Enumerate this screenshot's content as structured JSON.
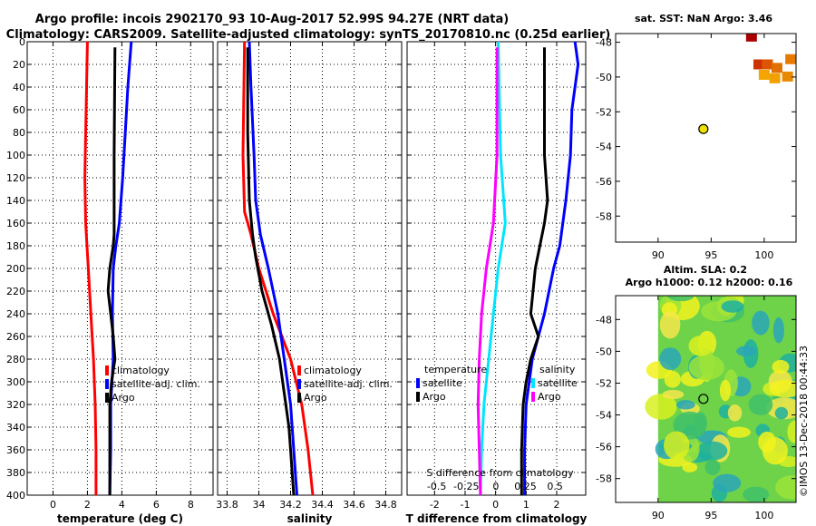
{
  "figure": {
    "title_line1": "Argo profile: incois 2902170_93 10-Aug-2017 52.99S 94.27E (NRT data)",
    "title_line2": "Climatology: CARS2009. Satellite-adjusted climatology: synTS_20170810.nc (0.25d earlier)",
    "timestamp": "©IMOS 13-Dec-2018 00:44:33"
  },
  "colors": {
    "climatology": "#ff0000",
    "satellite": "#0000ff",
    "argo": "#000000",
    "sal_satellite": "#00e5ff",
    "sal_argo": "#ff00ff"
  },
  "chart_data": [
    {
      "id": "temperature",
      "type": "line",
      "xlabel": "temperature (deg C)",
      "ylabel": "",
      "xlim": [
        -1.5,
        9.3
      ],
      "ylim": [
        400,
        0
      ],
      "xticks": [
        0,
        2,
        4,
        6,
        8
      ],
      "xtick_labels": [
        "0",
        "2",
        "4",
        "6",
        "8"
      ],
      "yticks": [
        0,
        20,
        40,
        60,
        80,
        100,
        120,
        140,
        160,
        180,
        200,
        220,
        240,
        260,
        280,
        300,
        320,
        340,
        360,
        380,
        400
      ],
      "grid": true,
      "legend": [
        "climatology",
        "satellite-adj. clim.",
        "Argo"
      ],
      "series": [
        {
          "name": "climatology",
          "color": "#ff0000",
          "depth": [
            0,
            40,
            80,
            120,
            160,
            200,
            240,
            280,
            320,
            360,
            400
          ],
          "values": [
            2.0,
            1.95,
            1.9,
            1.85,
            1.9,
            2.05,
            2.2,
            2.35,
            2.45,
            2.5,
            2.5
          ]
        },
        {
          "name": "satellite-adj. clim.",
          "color": "#0000ff",
          "depth": [
            0,
            20,
            40,
            80,
            120,
            160,
            180,
            200,
            240,
            280,
            320,
            360,
            400
          ],
          "values": [
            4.55,
            4.45,
            4.35,
            4.2,
            4.05,
            3.85,
            3.65,
            3.5,
            3.45,
            3.5,
            3.35,
            3.35,
            3.3
          ],
          "_x": 0
        },
        {
          "name": "Argo",
          "color": "#000000",
          "depth": [
            5,
            100,
            170,
            180,
            200,
            220,
            240,
            260,
            280,
            300,
            320,
            360,
            400
          ],
          "values": [
            3.6,
            3.55,
            3.55,
            3.5,
            3.3,
            3.2,
            3.35,
            3.5,
            3.6,
            3.4,
            3.3,
            3.3,
            3.3
          ]
        }
      ]
    },
    {
      "id": "salinity",
      "type": "line",
      "xlabel": "salinity",
      "ylabel": "",
      "xlim": [
        33.74,
        34.9
      ],
      "ylim": [
        400,
        0
      ],
      "xticks": [
        33.8,
        34.0,
        34.2,
        34.4,
        34.6,
        34.8
      ],
      "xtick_labels": [
        "33.8",
        "34",
        "34.2",
        "34.4",
        "34.6",
        "34.8"
      ],
      "yticks": [
        0,
        20,
        40,
        60,
        80,
        100,
        120,
        140,
        160,
        180,
        200,
        220,
        240,
        260,
        280,
        300,
        320,
        340,
        360,
        380,
        400
      ],
      "grid": true,
      "legend": [
        "climatology",
        "satellite-adj. clim.",
        "Argo"
      ],
      "series": [
        {
          "name": "climatology",
          "color": "#ff0000",
          "depth": [
            0,
            100,
            150,
            170,
            200,
            240,
            280,
            320,
            360,
            400
          ],
          "values": [
            33.91,
            33.9,
            33.91,
            33.95,
            34.0,
            34.09,
            34.2,
            34.27,
            34.31,
            34.34
          ]
        },
        {
          "name": "satellite-adj. clim.",
          "color": "#0000ff",
          "depth": [
            0,
            40,
            100,
            140,
            170,
            200,
            240,
            280,
            320,
            360,
            400
          ],
          "values": [
            33.94,
            33.95,
            33.97,
            33.98,
            34.01,
            34.06,
            34.12,
            34.16,
            34.2,
            34.22,
            34.24
          ]
        },
        {
          "name": "Argo",
          "color": "#000000",
          "depth": [
            5,
            80,
            140,
            170,
            190,
            220,
            250,
            280,
            310,
            340,
            360,
            400
          ],
          "values": [
            33.93,
            33.93,
            33.94,
            33.96,
            33.98,
            34.02,
            34.08,
            34.13,
            34.16,
            34.19,
            34.2,
            34.22
          ]
        }
      ]
    },
    {
      "id": "difference",
      "type": "line",
      "xlabel": "T difference from climatology",
      "x2label": "S difference from climatology",
      "xlim": [
        -2.9,
        2.95
      ],
      "ylim": [
        400,
        0
      ],
      "xticks": [
        -2,
        -1,
        0,
        1,
        2
      ],
      "xtick_labels": [
        "-2",
        "-1",
        "0",
        "1",
        "2"
      ],
      "x2ticks": [
        -0.5,
        -0.25,
        0,
        0.25,
        0.5
      ],
      "x2tick_labels": [
        "-0.5",
        "-0.25",
        "0",
        "0.25",
        "0.5"
      ],
      "yticks": [
        0,
        20,
        40,
        60,
        80,
        100,
        120,
        140,
        160,
        180,
        200,
        220,
        240,
        260,
        280,
        300,
        320,
        340,
        360,
        380,
        400
      ],
      "grid": true,
      "legend_left_title": "temperature",
      "legend_right_title": "salinity",
      "legend": [
        "satellite",
        "Argo"
      ],
      "series": [
        {
          "name": "T satellite",
          "color": "#0000ff",
          "depth": [
            0,
            20,
            60,
            100,
            140,
            180,
            200,
            240,
            280,
            320,
            360,
            400
          ],
          "values": [
            2.6,
            2.7,
            2.5,
            2.45,
            2.3,
            2.1,
            1.9,
            1.6,
            1.2,
            1.0,
            0.95,
            0.95
          ]
        },
        {
          "name": "T Argo",
          "color": "#000000",
          "depth": [
            5,
            100,
            140,
            160,
            200,
            240,
            260,
            280,
            300,
            320,
            360,
            400
          ],
          "values": [
            1.6,
            1.6,
            1.7,
            1.6,
            1.3,
            1.15,
            1.4,
            1.15,
            1.0,
            0.9,
            0.85,
            0.85
          ]
        },
        {
          "name": "S satellite",
          "color": "#00e5ff",
          "depth": [
            0,
            100,
            160,
            180,
            200,
            240,
            280,
            320,
            360,
            400
          ],
          "values": [
            0.02,
            0.04,
            0.08,
            0.05,
            0.02,
            -0.02,
            -0.06,
            -0.1,
            -0.12,
            -0.13
          ]
        },
        {
          "name": "S Argo",
          "color": "#ff00ff",
          "depth": [
            5,
            100,
            160,
            180,
            200,
            240,
            280,
            320,
            360,
            400
          ],
          "values": [
            0.01,
            0.01,
            -0.02,
            -0.05,
            -0.08,
            -0.12,
            -0.14,
            -0.15,
            -0.14,
            -0.13
          ]
        }
      ]
    },
    {
      "id": "sst_map",
      "type": "heatmap",
      "title": "sat. SST: NaN Argo: 3.46",
      "xlim": [
        86,
        103
      ],
      "ylim": [
        -59.5,
        -47.5
      ],
      "xticks": [
        90,
        95,
        100
      ],
      "xtick_labels": [
        "90",
        "95",
        "100"
      ],
      "yticks": [
        -48,
        -50,
        -52,
        -54,
        -56,
        -58
      ],
      "ytick_labels": [
        "-48",
        "-50",
        "-52",
        "-54",
        "-56",
        "-58"
      ],
      "argo_position": [
        94.27,
        -52.99
      ],
      "patches": [
        {
          "lon": 98.8,
          "lat": -47.7,
          "color": "#aa0000"
        },
        {
          "lon": 99.5,
          "lat": -49.3,
          "color": "#cc3300"
        },
        {
          "lon": 100.3,
          "lat": -49.3,
          "color": "#dd5500"
        },
        {
          "lon": 101.2,
          "lat": -49.5,
          "color": "#e07000"
        },
        {
          "lon": 102.2,
          "lat": -50.0,
          "color": "#e88a00"
        },
        {
          "lon": 101.0,
          "lat": -50.1,
          "color": "#f0a000"
        },
        {
          "lon": 102.5,
          "lat": -49.0,
          "color": "#e87a00"
        },
        {
          "lon": 100.0,
          "lat": -49.9,
          "color": "#f3a500"
        }
      ]
    },
    {
      "id": "sla_map",
      "type": "heatmap",
      "title_line1": "Altim. SLA: 0.2",
      "title_line2": "Argo h1000: 0.12 h2000: 0.16",
      "xlim": [
        86,
        103
      ],
      "ylim": [
        -59.5,
        -46.5
      ],
      "xticks": [
        90,
        95,
        100
      ],
      "xtick_labels": [
        "90",
        "95",
        "100"
      ],
      "yticks": [
        -48,
        -50,
        -52,
        -54,
        -56,
        -58
      ],
      "ytick_labels": [
        "-48",
        "-50",
        "-52",
        "-54",
        "-56",
        "-58"
      ],
      "data_lon_min": 90,
      "argo_position": [
        94.27,
        -52.99
      ]
    }
  ]
}
